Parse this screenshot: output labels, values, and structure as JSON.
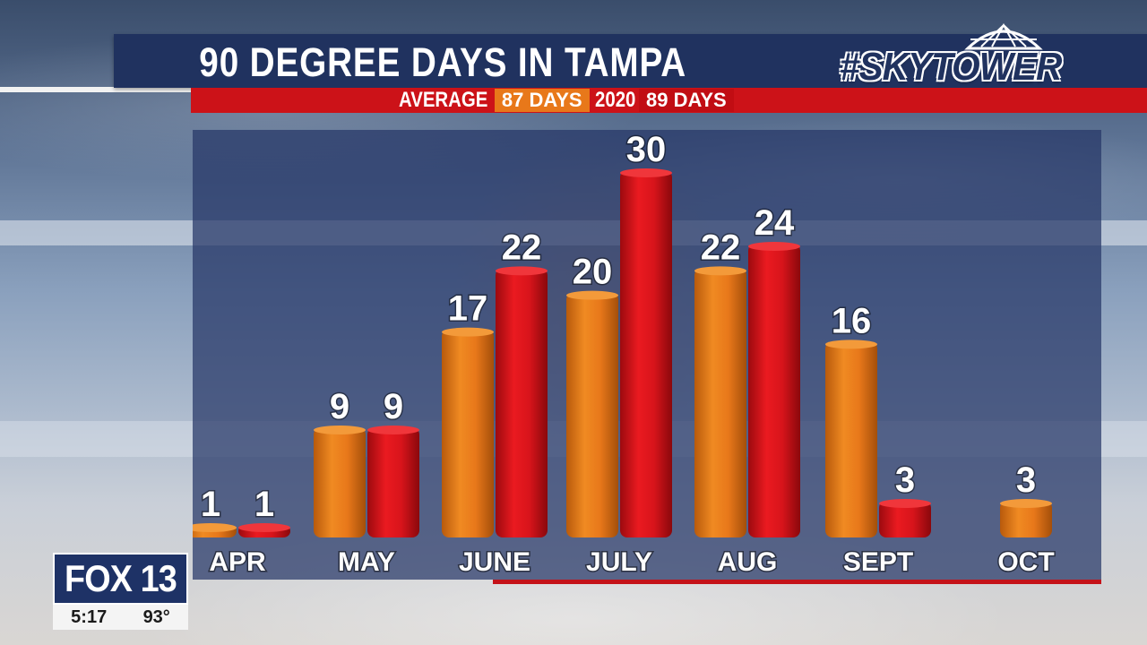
{
  "header": {
    "title": "90 DEGREE DAYS IN TAMPA",
    "brand": "#SKYTOWER"
  },
  "subheader": {
    "average_label": "AVERAGE",
    "average_value": "87 DAYS",
    "year_label": "2020",
    "year_value": "89 DAYS"
  },
  "colors": {
    "average": "#e8781a",
    "year_2020": "#d8141b",
    "panel": "#263666",
    "title_bar": "#20325f",
    "accent_red": "#cc1218"
  },
  "chart_data": {
    "type": "bar",
    "title": "90 DEGREE DAYS IN TAMPA",
    "categories": [
      "APR",
      "MAY",
      "JUNE",
      "JULY",
      "AUG",
      "SEPT",
      "OCT"
    ],
    "series": [
      {
        "name": "AVERAGE",
        "values": [
          1,
          9,
          17,
          20,
          22,
          16,
          3
        ]
      },
      {
        "name": "2020",
        "values": [
          1,
          9,
          22,
          30,
          24,
          3,
          null
        ]
      }
    ],
    "ylim": [
      0,
      30
    ],
    "grid": false,
    "legend": "top"
  },
  "station": {
    "logo": "FOX 13",
    "time": "5:17",
    "temperature": "93°"
  }
}
